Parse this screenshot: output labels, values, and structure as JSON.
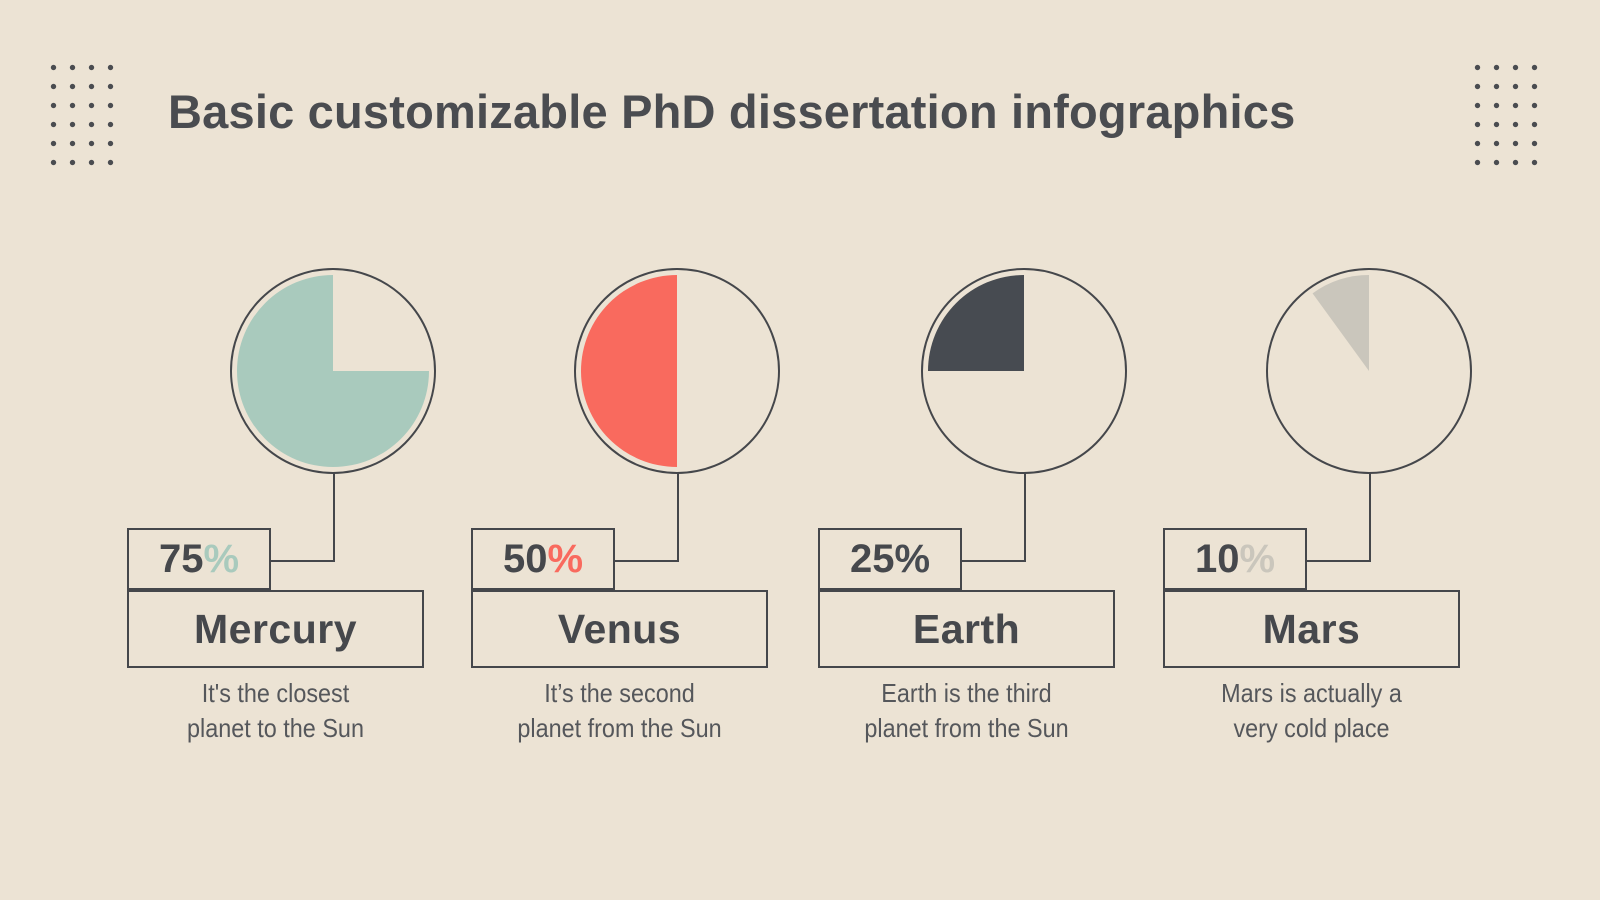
{
  "title": "Basic customizable PhD dissertation infographics",
  "colors": {
    "background": "#ece3d4",
    "ink": "#4a4c50",
    "border": "#45474b",
    "description_text": "#55575b"
  },
  "chart_data": {
    "type": "pie",
    "unit": "%",
    "legend_position": "none",
    "items": [
      {
        "name": "Mercury",
        "value": 75,
        "color": "#a9cabd",
        "desc_line1": "It's the closest",
        "desc_line2": "planet to the Sun"
      },
      {
        "name": "Venus",
        "value": 50,
        "color": "#f96a5e",
        "desc_line1": "It’s the second",
        "desc_line2": "planet from the Sun"
      },
      {
        "name": "Earth",
        "value": 25,
        "color": "#474b51",
        "desc_line1": "Earth is the third",
        "desc_line2": "planet from the Sun"
      },
      {
        "name": "Mars",
        "value": 10,
        "color": "#cac6bc",
        "desc_line1": "Mars is actually a",
        "desc_line2": "very cold place"
      }
    ]
  }
}
